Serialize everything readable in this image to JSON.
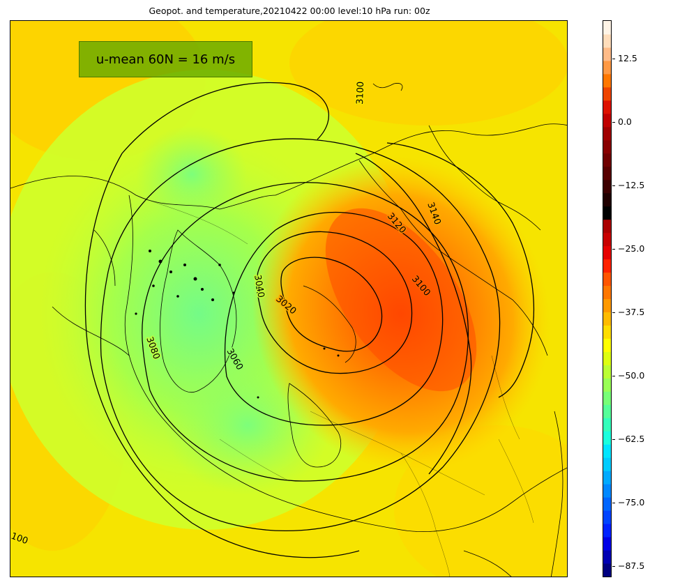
{
  "title": "Geopot. and temperature,20210422 00:00 level:10 hPa run: 00z",
  "annotation": "u-mean 60N = 16 m/s",
  "contour_labels": [
    {
      "text": "3100",
      "name": "contour-label-3100-north"
    },
    {
      "text": "3120",
      "name": "contour-label-3120"
    },
    {
      "text": "3140",
      "name": "contour-label-3140"
    },
    {
      "text": "3100",
      "name": "contour-label-3100-east"
    },
    {
      "text": "3040",
      "name": "contour-label-3040"
    },
    {
      "text": "3020",
      "name": "contour-label-3020"
    },
    {
      "text": "3080",
      "name": "contour-label-3080"
    },
    {
      "text": "3060",
      "name": "contour-label-3060"
    },
    {
      "text": "100",
      "name": "contour-label-3100-southwest"
    }
  ],
  "colorbar": {
    "ticks": [
      "12.5",
      "0.0",
      "−12.5",
      "−25.0",
      "−37.5",
      "−50.0",
      "−62.5",
      "−75.0",
      "−87.5"
    ],
    "colors": [
      "#000080",
      "#0000b3",
      "#0000e6",
      "#0022ff",
      "#0044ff",
      "#0066ff",
      "#0088ff",
      "#00aaff",
      "#00ccff",
      "#00e5ff",
      "#1affdd",
      "#33ffbb",
      "#55ff99",
      "#77ff77",
      "#99ff55",
      "#bbff33",
      "#ddff11",
      "#ffff00",
      "#ffdd00",
      "#ffbb00",
      "#ff9900",
      "#ff7700",
      "#ff5500",
      "#ff2200",
      "#e60000",
      "#c80000",
      "#aa0000",
      "#000000",
      "#200000",
      "#3c0000",
      "#580000",
      "#700000",
      "#880000",
      "#a00000",
      "#c00000",
      "#dd1100",
      "#ee4400",
      "#ff7700",
      "#ff9944",
      "#ffbb88",
      "#ffddbb",
      "#fff4e6"
    ]
  },
  "colors": {
    "background_field": "#f8e600",
    "warm_core": "#ff6a00",
    "cold_core": "#77ff77",
    "annotation_box": "#66aa00"
  }
}
